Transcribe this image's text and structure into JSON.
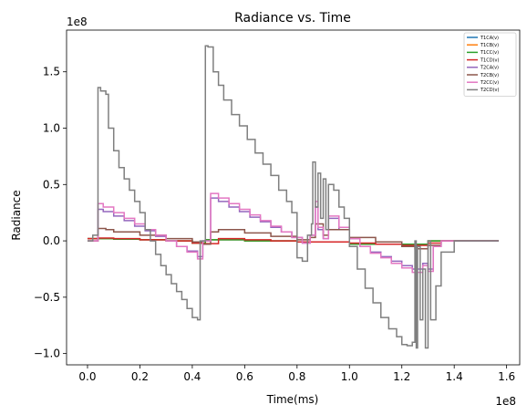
{
  "chart_data": {
    "type": "line",
    "title": "Radiance vs. Time",
    "xlabel": "Time(ms)",
    "ylabel": "Radiance",
    "x_offset_text": "1e8",
    "y_offset_text": "1e8",
    "xlim": [
      -0.08,
      1.65
    ],
    "ylim": [
      -1.1,
      1.87
    ],
    "x_ticks": [
      0.0,
      0.2,
      0.4,
      0.6,
      0.8,
      1.0,
      1.2,
      1.4,
      1.6
    ],
    "x_tick_labels": [
      "0.0",
      "0.2",
      "0.4",
      "0.6",
      "0.8",
      "1.0",
      "1.2",
      "1.4",
      "1.6"
    ],
    "y_ticks": [
      -1.0,
      -0.5,
      0.0,
      0.5,
      1.0,
      1.5
    ],
    "y_tick_labels": [
      "−1.0",
      "−0.5",
      "0.0",
      "0.5",
      "1.0",
      "1.5"
    ],
    "grid": false,
    "legend_position": "top-right",
    "series": [
      {
        "name": "T1CA(v)",
        "color": "#1f77b4",
        "x": [
          0.0,
          0.1,
          0.2,
          0.3,
          0.4,
          0.45,
          0.6,
          0.8,
          1.0,
          1.2,
          1.3,
          1.35,
          1.57
        ],
        "y": [
          0.02,
          0.015,
          0.01,
          0.0,
          -0.02,
          0.01,
          0.0,
          -0.01,
          -0.03,
          -0.03,
          0.0,
          0.0,
          0.0
        ]
      },
      {
        "name": "T1CB(v)",
        "color": "#ff7f0e",
        "x": [
          0.0,
          0.1,
          0.2,
          0.3,
          0.4,
          0.45,
          0.6,
          0.8,
          1.0,
          1.2,
          1.3,
          1.35,
          1.57
        ],
        "y": [
          0.02,
          0.015,
          0.01,
          0.0,
          -0.02,
          0.01,
          0.0,
          -0.01,
          -0.03,
          -0.03,
          0.0,
          0.0,
          0.0
        ]
      },
      {
        "name": "T1CC(v)",
        "color": "#2ca02c",
        "x": [
          0.0,
          0.1,
          0.2,
          0.3,
          0.4,
          0.45,
          0.6,
          0.8,
          1.0,
          1.2,
          1.3,
          1.35,
          1.57
        ],
        "y": [
          0.02,
          0.015,
          0.01,
          0.0,
          -0.02,
          0.01,
          0.0,
          -0.01,
          -0.03,
          -0.03,
          0.0,
          0.0,
          0.0
        ]
      },
      {
        "name": "T1CD(v)",
        "color": "#d62728",
        "x": [
          0.0,
          0.04,
          0.1,
          0.2,
          0.3,
          0.4,
          0.44,
          0.5,
          0.6,
          0.7,
          0.8,
          0.9,
          1.0,
          1.1,
          1.2,
          1.3,
          1.35,
          1.57
        ],
        "y": [
          0.02,
          0.025,
          0.02,
          0.01,
          0.0,
          -0.02,
          -0.025,
          0.02,
          0.01,
          0.0,
          -0.01,
          -0.01,
          -0.02,
          -0.03,
          -0.04,
          -0.02,
          0.0,
          0.0
        ]
      },
      {
        "name": "T2CA(v)",
        "color": "#9467bd",
        "x": [
          0.0,
          0.04,
          0.06,
          0.1,
          0.14,
          0.18,
          0.22,
          0.26,
          0.3,
          0.34,
          0.38,
          0.42,
          0.44,
          0.47,
          0.5,
          0.54,
          0.58,
          0.62,
          0.66,
          0.7,
          0.74,
          0.78,
          0.82,
          0.85,
          0.87,
          0.88,
          0.9,
          0.92,
          0.96,
          1.0,
          1.04,
          1.08,
          1.12,
          1.16,
          1.2,
          1.24,
          1.28,
          1.3,
          1.32,
          1.35,
          1.57
        ],
        "y": [
          0.0,
          0.28,
          0.26,
          0.22,
          0.18,
          0.13,
          0.09,
          0.04,
          0.0,
          -0.05,
          -0.09,
          -0.14,
          0.0,
          0.38,
          0.35,
          0.3,
          0.26,
          0.21,
          0.17,
          0.12,
          0.08,
          0.03,
          -0.02,
          0.05,
          0.3,
          0.1,
          0.02,
          0.2,
          0.1,
          0.02,
          -0.05,
          -0.1,
          -0.14,
          -0.18,
          -0.22,
          -0.25,
          -0.2,
          -0.25,
          -0.05,
          0.0,
          0.0
        ]
      },
      {
        "name": "T2CB(v)",
        "color": "#8c564b",
        "x": [
          0.0,
          0.04,
          0.07,
          0.1,
          0.2,
          0.3,
          0.4,
          0.44,
          0.47,
          0.5,
          0.6,
          0.7,
          0.8,
          0.85,
          0.87,
          0.9,
          0.92,
          1.0,
          1.1,
          1.2,
          1.25,
          1.3,
          1.35,
          1.57
        ],
        "y": [
          0.0,
          0.11,
          0.1,
          0.08,
          0.05,
          0.02,
          -0.01,
          -0.03,
          0.08,
          0.1,
          0.07,
          0.04,
          0.01,
          0.03,
          0.15,
          0.05,
          0.1,
          0.03,
          -0.01,
          -0.05,
          -0.07,
          -0.04,
          0.0,
          0.0
        ]
      },
      {
        "name": "T2CC(v)",
        "color": "#e377c2",
        "x": [
          0.0,
          0.04,
          0.06,
          0.1,
          0.14,
          0.18,
          0.22,
          0.26,
          0.3,
          0.34,
          0.38,
          0.42,
          0.44,
          0.47,
          0.5,
          0.54,
          0.58,
          0.62,
          0.66,
          0.7,
          0.74,
          0.78,
          0.82,
          0.85,
          0.87,
          0.88,
          0.9,
          0.92,
          0.96,
          1.0,
          1.04,
          1.08,
          1.12,
          1.16,
          1.2,
          1.24,
          1.28,
          1.3,
          1.32,
          1.35,
          1.57
        ],
        "y": [
          0.0,
          0.33,
          0.3,
          0.25,
          0.2,
          0.15,
          0.1,
          0.05,
          0.0,
          -0.05,
          -0.1,
          -0.16,
          0.0,
          0.42,
          0.38,
          0.33,
          0.28,
          0.23,
          0.18,
          0.13,
          0.08,
          0.03,
          -0.02,
          0.05,
          0.35,
          0.12,
          0.02,
          0.22,
          0.12,
          0.02,
          -0.05,
          -0.11,
          -0.15,
          -0.2,
          -0.24,
          -0.28,
          -0.22,
          -0.27,
          -0.05,
          0.0,
          0.0
        ]
      },
      {
        "name": "T2CD(v)",
        "color": "#7f7f7f",
        "x": [
          0.0,
          0.02,
          0.04,
          0.05,
          0.07,
          0.08,
          0.1,
          0.12,
          0.14,
          0.16,
          0.18,
          0.2,
          0.22,
          0.24,
          0.26,
          0.28,
          0.3,
          0.32,
          0.34,
          0.36,
          0.38,
          0.4,
          0.42,
          0.43,
          0.45,
          0.46,
          0.48,
          0.5,
          0.52,
          0.55,
          0.58,
          0.61,
          0.64,
          0.67,
          0.7,
          0.73,
          0.76,
          0.78,
          0.8,
          0.82,
          0.84,
          0.855,
          0.86,
          0.87,
          0.88,
          0.89,
          0.9,
          0.91,
          0.92,
          0.94,
          0.96,
          0.98,
          1.0,
          1.03,
          1.06,
          1.09,
          1.12,
          1.15,
          1.18,
          1.2,
          1.22,
          1.24,
          1.25,
          1.255,
          1.26,
          1.27,
          1.28,
          1.29,
          1.3,
          1.31,
          1.33,
          1.35,
          1.4,
          1.57
        ],
        "y": [
          0.0,
          0.05,
          1.36,
          1.33,
          1.3,
          1.0,
          0.8,
          0.65,
          0.55,
          0.45,
          0.35,
          0.25,
          0.1,
          0.0,
          -0.12,
          -0.22,
          -0.3,
          -0.38,
          -0.45,
          -0.52,
          -0.6,
          -0.68,
          -0.7,
          0.0,
          1.73,
          1.72,
          1.5,
          1.38,
          1.25,
          1.12,
          1.02,
          0.9,
          0.78,
          0.68,
          0.58,
          0.45,
          0.35,
          0.25,
          -0.15,
          -0.18,
          0.05,
          0.15,
          0.7,
          0.3,
          0.6,
          0.2,
          0.55,
          0.1,
          0.5,
          0.45,
          0.3,
          0.2,
          -0.05,
          -0.25,
          -0.42,
          -0.55,
          -0.68,
          -0.78,
          -0.85,
          -0.92,
          -0.93,
          -0.9,
          0.0,
          -0.95,
          -0.05,
          -0.7,
          -0.25,
          -0.95,
          0.0,
          -0.7,
          -0.4,
          -0.1,
          0.0,
          0.0
        ]
      }
    ]
  }
}
